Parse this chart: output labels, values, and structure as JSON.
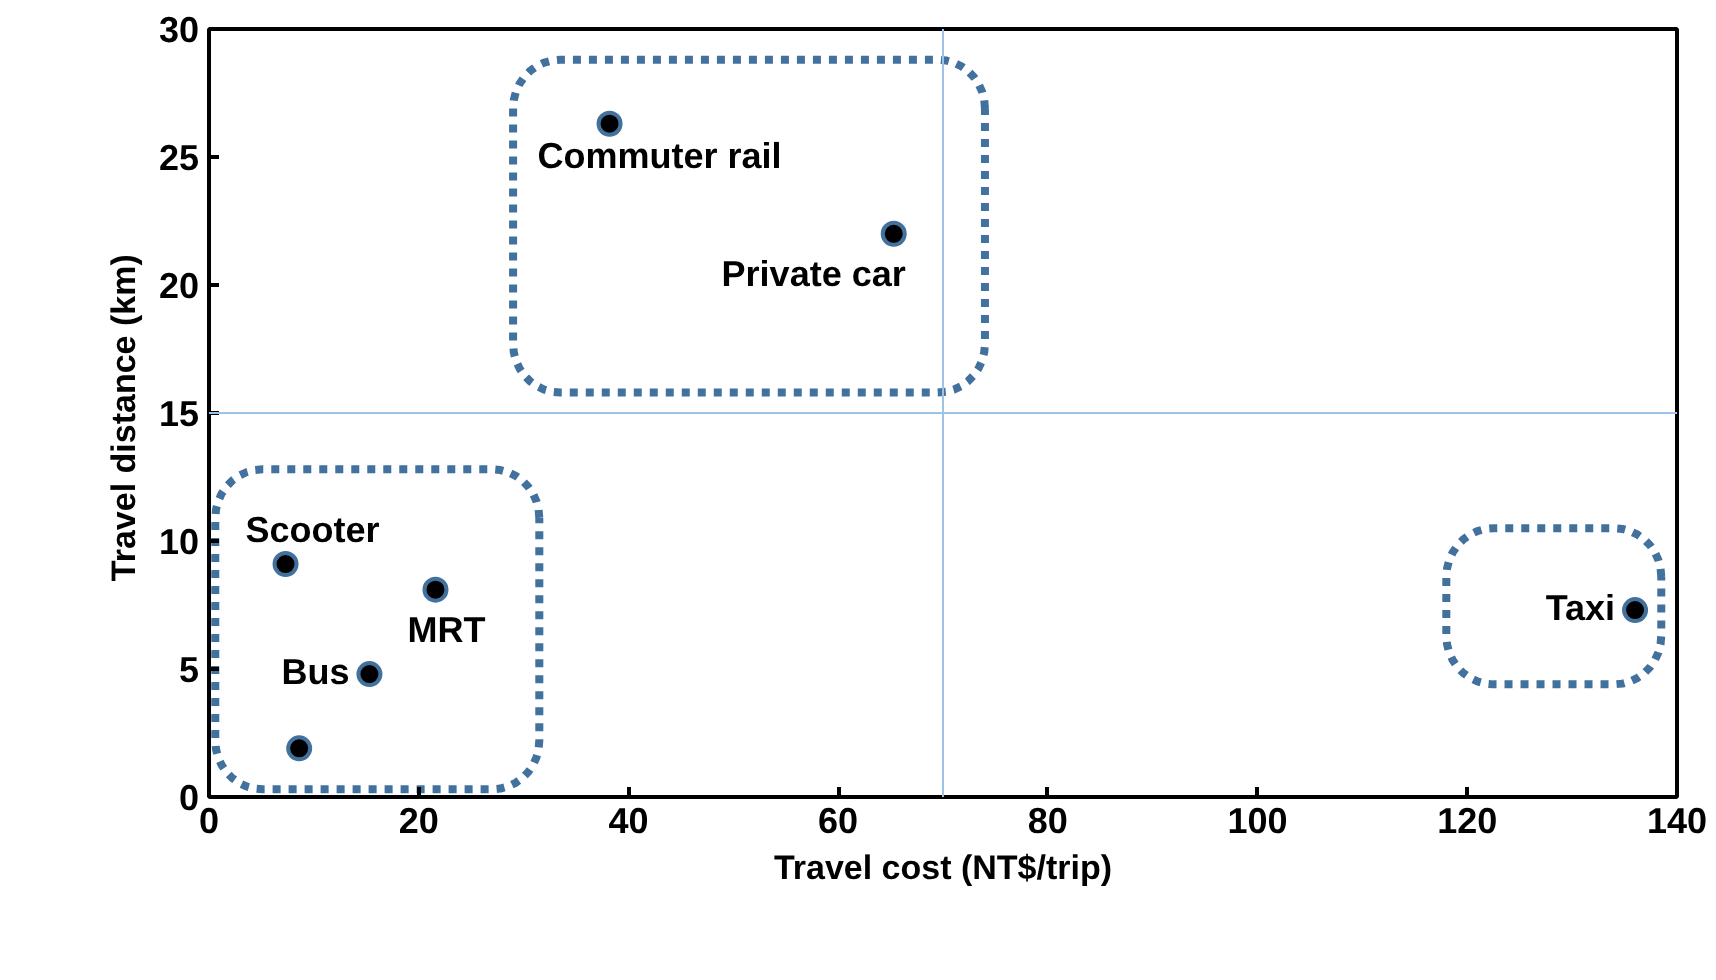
{
  "chart_data": {
    "type": "scatter",
    "xlabel": "Travel cost (NT$/trip)",
    "ylabel": "Travel  distance (km)",
    "x": [
      38.2,
      65.3,
      7.3,
      21.6,
      15.3,
      8.6,
      136
    ],
    "values": [
      26.3,
      22.0,
      9.1,
      8.1,
      4.8,
      1.9,
      7.3
    ],
    "color": "#000000",
    "marker": "circle",
    "xlim": [
      0,
      140
    ],
    "xticks": [
      0,
      20,
      40,
      60,
      80,
      100,
      120,
      140
    ],
    "ylim": [
      0,
      30
    ],
    "yticks": [
      0,
      5,
      10,
      15,
      20,
      25,
      30
    ],
    "grid": false,
    "ref_lines": [
      {
        "axis": "x",
        "value": 70,
        "color": "#9dc3e6"
      },
      {
        "axis": "y",
        "value": 15,
        "color": "#9dc3e6"
      }
    ],
    "annotations": [
      {
        "text": "Commuter rail",
        "x": 38.2,
        "y": 26.3
      },
      {
        "text": "Private car",
        "x": 65.3,
        "y": 22.0
      },
      {
        "text": "Scooter",
        "x": 7.3,
        "y": 9.1
      },
      {
        "text": "MRT",
        "x": 21.6,
        "y": 8.1
      },
      {
        "text": "Bus",
        "x": 15.3,
        "y": 4.8
      },
      {
        "text": "Taxi",
        "x": 136,
        "y": 7.3
      }
    ]
  }
}
